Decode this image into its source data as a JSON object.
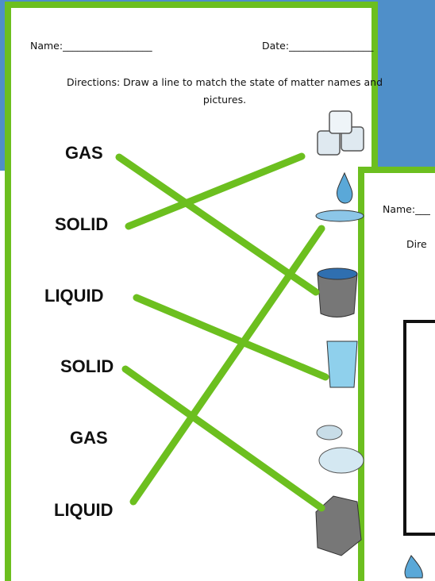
{
  "worksheet": {
    "name_field": "Name:__________________",
    "date_field": "Date:_________________",
    "directions": "Directions: Draw a line to match the state of matter names and pictures.",
    "words": [
      "GAS",
      "SOLID",
      "LIQUID",
      "SOLID",
      "GAS",
      "LIQUID"
    ]
  },
  "background_sheet": {
    "name_field": "Name:___",
    "directions_fragment": "Dire"
  }
}
